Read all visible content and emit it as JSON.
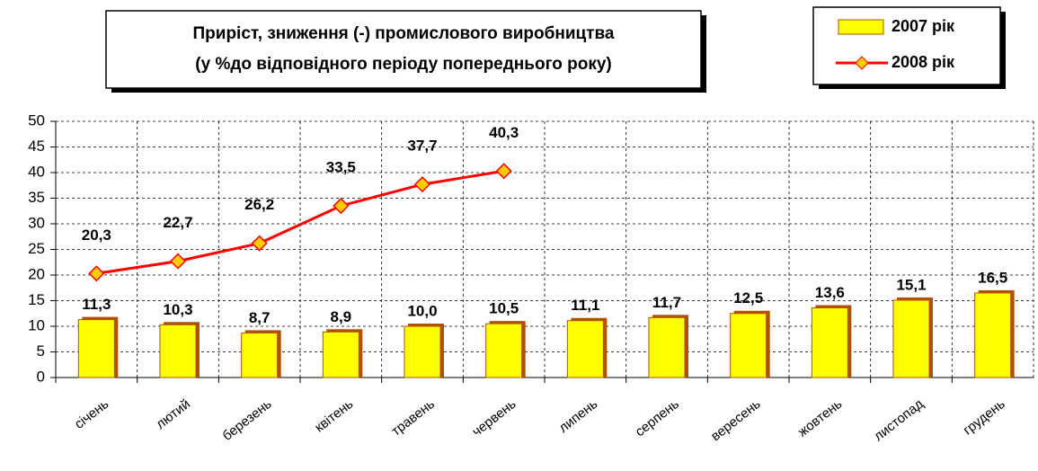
{
  "chart_data": {
    "type": "bar",
    "title": [
      "Приріст, зниження (-) промислового виробництва",
      "(у %до відповідного періоду попереднього року)"
    ],
    "categories": [
      "січень",
      "лютий",
      "березень",
      "квітень",
      "травень",
      "червень",
      "липень",
      "серпень",
      "вересень",
      "жовтень",
      "листопад",
      "грудень"
    ],
    "series": [
      {
        "name": "2007 рік",
        "type": "bar",
        "color": "#ffff00",
        "values": [
          11.3,
          10.3,
          8.7,
          8.9,
          10.0,
          10.5,
          11.1,
          11.7,
          12.5,
          13.6,
          15.1,
          16.5
        ],
        "value_labels": [
          "11,3",
          "10,3",
          "8,7",
          "8,9",
          "10,0",
          "10,5",
          "11,1",
          "11,7",
          "12,5",
          "13,6",
          "15,1",
          "16,5"
        ]
      },
      {
        "name": "2008 рік",
        "type": "line",
        "color": "#ff0000",
        "values": [
          20.3,
          22.7,
          26.2,
          33.5,
          37.7,
          40.3,
          null,
          null,
          null,
          null,
          null,
          null
        ],
        "value_labels": [
          "20,3",
          "22,7",
          "26,2",
          "33,5",
          "37,7",
          "40,3",
          null,
          null,
          null,
          null,
          null,
          null
        ]
      }
    ],
    "ylim": [
      0,
      50
    ],
    "yticks": [
      0,
      5,
      10,
      15,
      20,
      25,
      30,
      35,
      40,
      45,
      50
    ],
    "grid": true,
    "legend": "top-right"
  }
}
